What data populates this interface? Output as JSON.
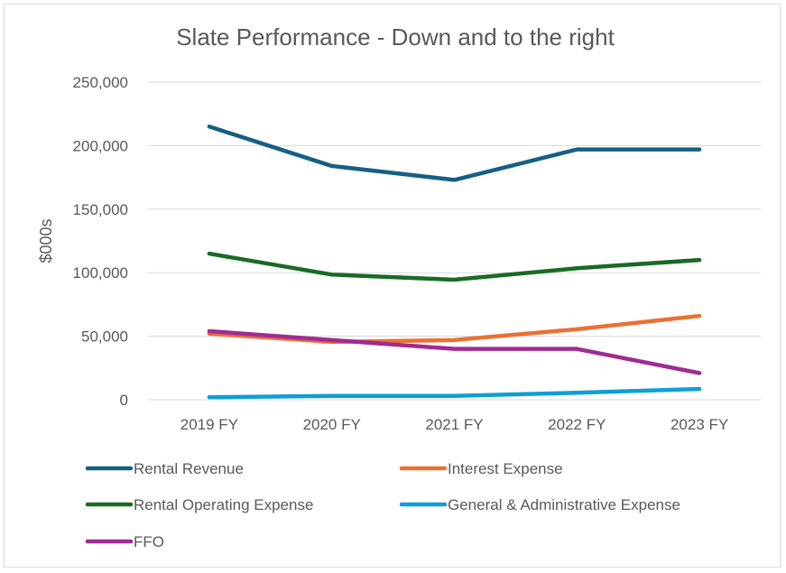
{
  "chart_data": {
    "type": "line",
    "title": "Slate Performance - Down and to the right",
    "xlabel": "",
    "ylabel": "$000s",
    "categories": [
      "2019 FY",
      "2020 FY",
      "2021 FY",
      "2022 FY",
      "2023 FY"
    ],
    "ylim": [
      0,
      250000
    ],
    "yticks": [
      0,
      50000,
      100000,
      150000,
      200000,
      250000
    ],
    "ytick_labels": [
      "0",
      "50,000",
      "100,000",
      "150,000",
      "200,000",
      "250,000"
    ],
    "grid": true,
    "legend_position": "bottom",
    "series": [
      {
        "name": "Rental Revenue",
        "color": "#156082",
        "values": [
          215000,
          184000,
          173000,
          197000,
          197000
        ]
      },
      {
        "name": "Interest Expense",
        "color": "#E97132",
        "values": [
          52000,
          45500,
          47000,
          55500,
          66000
        ]
      },
      {
        "name": "Rental Operating Expense",
        "color": "#196B24",
        "values": [
          115000,
          98500,
          94500,
          103500,
          110000
        ]
      },
      {
        "name": "General & Administrative Expense",
        "color": "#0F9ED5",
        "values": [
          2000,
          3000,
          3000,
          5500,
          8500
        ]
      },
      {
        "name": "FFO",
        "color": "#A02B93",
        "values": [
          54000,
          47000,
          40000,
          40000,
          21000
        ]
      }
    ]
  }
}
